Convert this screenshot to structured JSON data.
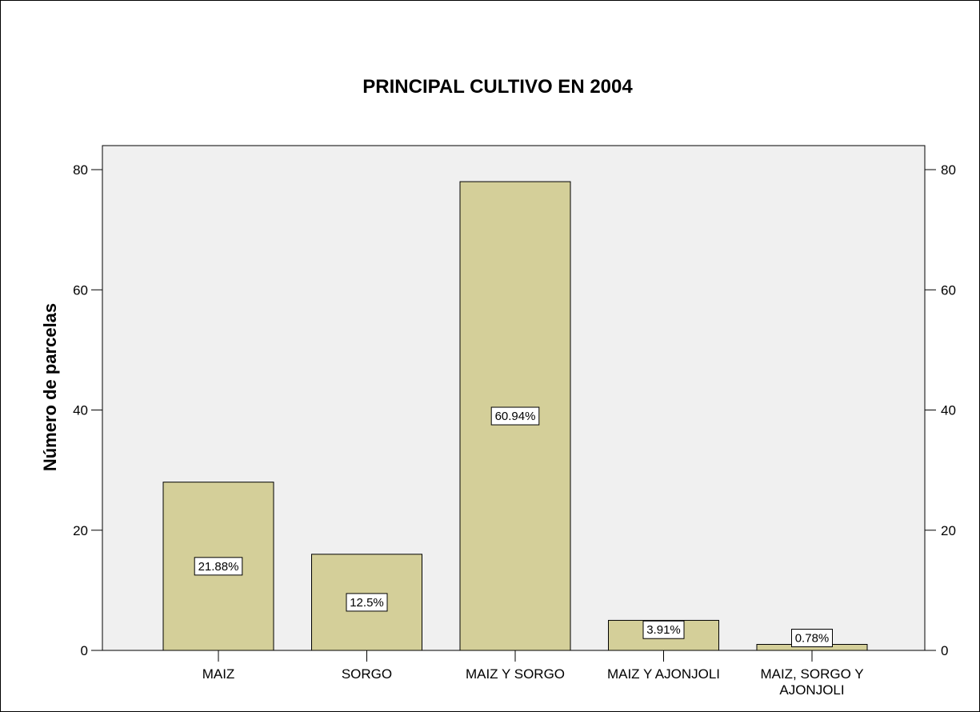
{
  "chart_data": {
    "type": "bar",
    "title": "PRINCIPAL CULTIVO EN 2004",
    "ylabel": "Número de parcelas",
    "xlabel": "",
    "categories": [
      "MAIZ",
      "SORGO",
      "MAIZ Y SORGO",
      "MAIZ Y AJONJOLI",
      "MAIZ, SORGO Y AJONJOLI"
    ],
    "category_lines": [
      [
        "MAIZ"
      ],
      [
        "SORGO"
      ],
      [
        "MAIZ Y SORGO"
      ],
      [
        "MAIZ Y AJONJOLI"
      ],
      [
        "MAIZ, SORGO Y",
        "AJONJOLI"
      ]
    ],
    "values": [
      28,
      16,
      78,
      5,
      1
    ],
    "percent_labels": [
      "21.88%",
      "12.5%",
      "60.94%",
      "3.91%",
      "0.78%"
    ],
    "ylim": [
      0,
      84
    ],
    "yticks": [
      0,
      20,
      40,
      60,
      80
    ],
    "secondary_y_axis": true,
    "bar_color": "#d4cf99",
    "plot_background": "#f0f0f0",
    "grid": false
  }
}
